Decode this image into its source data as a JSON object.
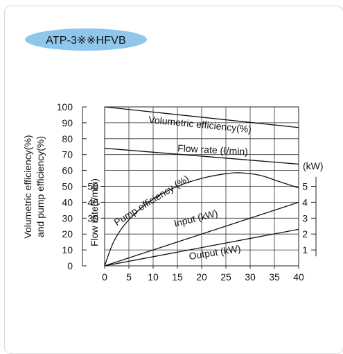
{
  "badge": {
    "label": "ATP-3※※HFVB",
    "color": "#8fc7ec"
  },
  "chart_data": {
    "type": "line",
    "x": {
      "range": [
        0,
        40
      ],
      "ticks": [
        0,
        5,
        10,
        15,
        20,
        25,
        30,
        35,
        40
      ]
    },
    "y_left_efficiency": {
      "label_line1": "Volumetric efficiency(%)",
      "label_line2": "and pump efficiency(%)",
      "range": [
        0,
        100
      ],
      "ticks": [
        0,
        10,
        20,
        30,
        40,
        50,
        60,
        70,
        80,
        90,
        100
      ]
    },
    "y_left_flow": {
      "label": "Flow rate(ℓ/min)",
      "range": [
        0,
        100
      ],
      "ticks": [
        30,
        40,
        50
      ]
    },
    "y_right_power": {
      "unit_label": "(kW)",
      "range": [
        0,
        10
      ],
      "ticks": [
        1,
        2,
        3,
        4,
        5
      ]
    },
    "grid": true,
    "series": [
      {
        "name": "Volumetric efficiency(%)",
        "axis": "efficiency",
        "points": [
          [
            0,
            100
          ],
          [
            40,
            87
          ]
        ]
      },
      {
        "name": "Flow rate (ℓ/min)",
        "axis": "flow",
        "points": [
          [
            0,
            74
          ],
          [
            40,
            64
          ]
        ]
      },
      {
        "name": "Pump efficiency (%)",
        "axis": "efficiency",
        "points": [
          [
            0,
            0
          ],
          [
            2,
            16
          ],
          [
            5,
            29
          ],
          [
            10,
            42
          ],
          [
            15,
            50
          ],
          [
            20,
            55
          ],
          [
            25,
            58
          ],
          [
            28,
            58.5
          ],
          [
            32,
            57
          ],
          [
            36,
            53
          ],
          [
            40,
            49
          ]
        ]
      },
      {
        "name": "Input (kW)",
        "axis": "power",
        "points": [
          [
            0,
            0
          ],
          [
            40,
            4
          ]
        ]
      },
      {
        "name": "Output (kW)",
        "axis": "power",
        "points": [
          [
            0,
            0
          ],
          [
            40,
            2.3
          ]
        ]
      }
    ]
  }
}
